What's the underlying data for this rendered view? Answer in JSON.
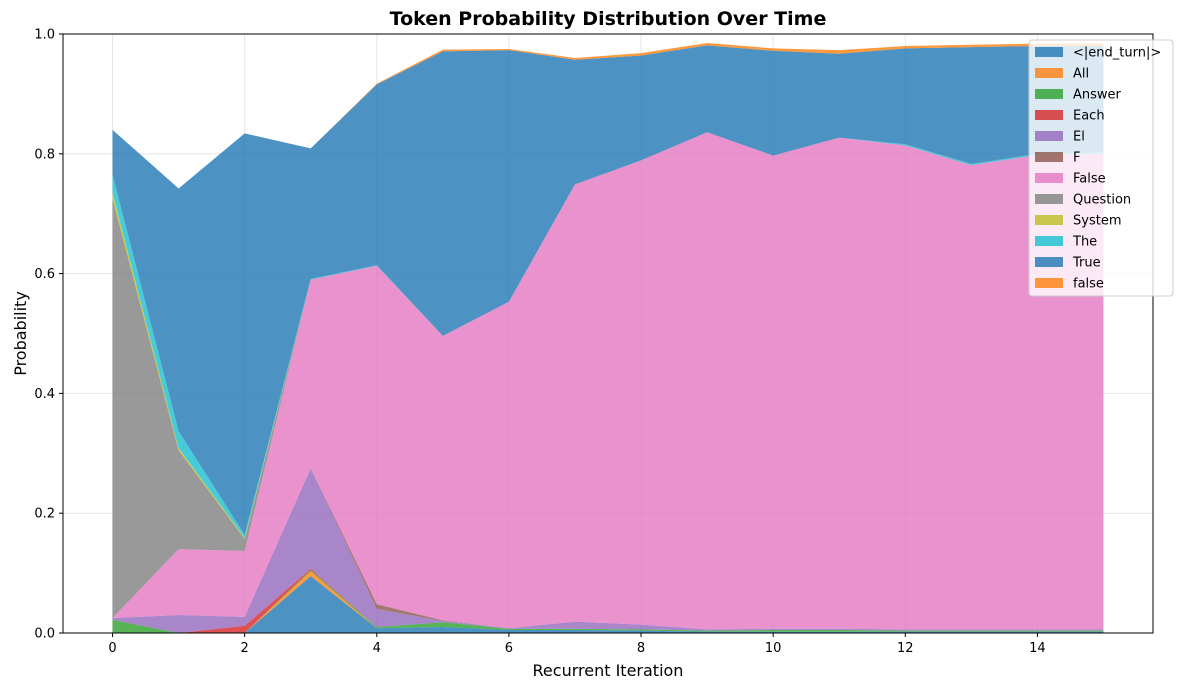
{
  "chart_data": {
    "type": "area",
    "stacked": true,
    "title": "Token Probability Distribution Over Time",
    "xlabel": "Recurrent Iteration",
    "ylabel": "Probability",
    "xlim": [
      -0.75,
      15.75
    ],
    "ylim": [
      0,
      1.0
    ],
    "x": [
      0,
      1,
      2,
      3,
      4,
      5,
      6,
      7,
      8,
      9,
      10,
      11,
      12,
      13,
      14,
      15
    ],
    "xticks": [
      0,
      2,
      4,
      6,
      8,
      10,
      12,
      14
    ],
    "xtick_labels": [
      "0",
      "2",
      "4",
      "6",
      "8",
      "10",
      "12",
      "14"
    ],
    "yticks": [
      0,
      0.2,
      0.4,
      0.6,
      0.8,
      1.0
    ],
    "ytick_labels": [
      "0.0",
      "0.2",
      "0.4",
      "0.6",
      "0.8",
      "1.0"
    ],
    "grid": true,
    "legend_position": "top-right",
    "series": [
      {
        "name": "<|end_turn|>",
        "color": "#1f77b4",
        "values": [
          0,
          0,
          0,
          0.095,
          0.008,
          0.01,
          0.005,
          0.005,
          0.004,
          0.002,
          0.002,
          0.002,
          0.002,
          0.002,
          0.002,
          0.002
        ]
      },
      {
        "name": "All",
        "color": "#ff7f0e",
        "values": [
          0,
          0,
          0,
          0.008,
          0,
          0,
          0,
          0,
          0,
          0,
          0,
          0,
          0,
          0,
          0,
          0
        ]
      },
      {
        "name": "Answer",
        "color": "#2ca02c",
        "values": [
          0.022,
          0,
          0,
          0.002,
          0.002,
          0.008,
          0.002,
          0.002,
          0.002,
          0.002,
          0.003,
          0.003,
          0.002,
          0.002,
          0.002,
          0.002
        ]
      },
      {
        "name": "Each",
        "color": "#d62728",
        "values": [
          0,
          0,
          0.012,
          0.002,
          0,
          0,
          0,
          0,
          0,
          0,
          0,
          0,
          0,
          0,
          0,
          0
        ]
      },
      {
        "name": "El",
        "color": "#9467bd",
        "values": [
          0.003,
          0.03,
          0.015,
          0.168,
          0.03,
          0.002,
          0.001,
          0.012,
          0.008,
          0.002,
          0.002,
          0.002,
          0.002,
          0.002,
          0.002,
          0.002
        ]
      },
      {
        "name": "F",
        "color": "#8c564b",
        "values": [
          0,
          0,
          0,
          0,
          0.008,
          0.001,
          0,
          0,
          0,
          0,
          0,
          0,
          0,
          0,
          0,
          0
        ]
      },
      {
        "name": "False",
        "color": "#e377c2",
        "values": [
          0,
          0.11,
          0.11,
          0.315,
          0.565,
          0.475,
          0.545,
          0.73,
          0.775,
          0.83,
          0.79,
          0.82,
          0.808,
          0.775,
          0.792,
          0.794
        ]
      },
      {
        "name": "Question",
        "color": "#7f7f7f",
        "values": [
          0.7,
          0.165,
          0.02,
          0,
          0,
          0,
          0,
          0,
          0,
          0,
          0,
          0,
          0,
          0,
          0,
          0
        ]
      },
      {
        "name": "System",
        "color": "#bcbd22",
        "values": [
          0.01,
          0.004,
          0.002,
          0,
          0,
          0,
          0,
          0,
          0,
          0,
          0,
          0,
          0,
          0,
          0,
          0
        ]
      },
      {
        "name": "The",
        "color": "#17becf",
        "values": [
          0.03,
          0.028,
          0.005,
          0.001,
          0.001,
          0,
          0,
          0,
          0,
          0,
          0,
          0,
          0.002,
          0.002,
          0.002,
          0.002
        ]
      },
      {
        "name": "True",
        "color": "#1f77b4",
        "values": [
          0.075,
          0.405,
          0.67,
          0.218,
          0.302,
          0.475,
          0.42,
          0.208,
          0.175,
          0.145,
          0.175,
          0.14,
          0.16,
          0.195,
          0.18,
          0.178
        ]
      },
      {
        "name": "false",
        "color": "#ff7f0e",
        "values": [
          0,
          0,
          0,
          0,
          0.001,
          0.003,
          0.002,
          0.003,
          0.004,
          0.004,
          0.004,
          0.006,
          0.004,
          0.004,
          0.004,
          0.004
        ]
      }
    ]
  }
}
